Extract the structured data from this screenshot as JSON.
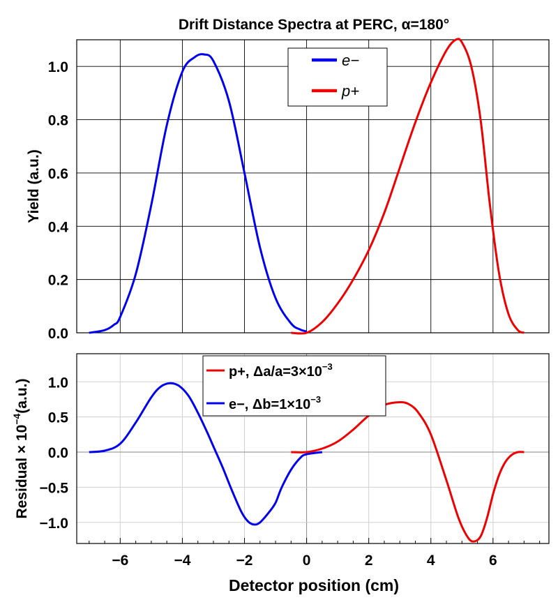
{
  "chart_data": [
    {
      "type": "line",
      "title": "Drift Distance Spectra at PERC, α=180°",
      "xlabel": "",
      "ylabel": "Yield (a.u.)",
      "xlim": [
        -7.4,
        7.8
      ],
      "ylim": [
        0,
        1.1
      ],
      "yticks": [
        "0.0",
        "0.2",
        "0.4",
        "0.6",
        "0.8",
        "1.0"
      ],
      "ytick_values": [
        0,
        0.2,
        0.4,
        0.6,
        0.8,
        1.0
      ],
      "xgrid": [
        -6,
        -4,
        -2,
        0,
        2,
        4,
        6
      ],
      "grid": true,
      "legend": {
        "placement": "top-center",
        "entries": [
          {
            "label": "e−",
            "color": "#0000ee"
          },
          {
            "label": "p+",
            "color": "#ee0000"
          }
        ]
      },
      "series": [
        {
          "name": "e−",
          "color": "#0000ee",
          "x": [
            -7,
            -6.5,
            -6.2,
            -6,
            -5.5,
            -5,
            -4.5,
            -4,
            -3.6,
            -3.3,
            -3,
            -2.5,
            -2,
            -1.5,
            -1,
            -0.5,
            -0.2,
            0
          ],
          "y": [
            0.0,
            0.01,
            0.03,
            0.06,
            0.22,
            0.48,
            0.78,
            0.98,
            1.035,
            1.045,
            1.02,
            0.87,
            0.6,
            0.32,
            0.13,
            0.035,
            0.012,
            0.005
          ]
        },
        {
          "name": "p+",
          "color": "#ee0000",
          "x": [
            -0.5,
            0,
            0.5,
            1,
            1.5,
            2,
            2.5,
            3,
            3.5,
            4,
            4.5,
            4.8,
            5,
            5.3,
            5.6,
            5.9,
            6.2,
            6.5,
            6.8,
            7
          ],
          "y": [
            0.0,
            0.0,
            0.04,
            0.11,
            0.2,
            0.31,
            0.45,
            0.62,
            0.79,
            0.94,
            1.06,
            1.1,
            1.09,
            1.0,
            0.8,
            0.48,
            0.22,
            0.07,
            0.01,
            0.0
          ]
        }
      ]
    },
    {
      "type": "line",
      "xlabel": "Detector position (cm)",
      "ylabel": "Residual × 10^−4(a.u.)",
      "ylabel_main": "Residual × 10",
      "ylabel_exp": "−4",
      "ylabel_unit": "(a.u.)",
      "xlim": [
        -7.4,
        7.8
      ],
      "ylim": [
        -1.3,
        1.4
      ],
      "xticks": [
        "−6",
        "−4",
        "−2",
        "0",
        "2",
        "4",
        "6"
      ],
      "xtick_values": [
        -6,
        -4,
        -2,
        0,
        2,
        4,
        6
      ],
      "yticks": [
        "−1.0",
        "−0.5",
        "0.0",
        "0.5",
        "1.0"
      ],
      "ytick_values": [
        -1.0,
        -0.5,
        0.0,
        0.5,
        1.0
      ],
      "grid": true,
      "legend": {
        "placement": "top-center",
        "entries": [
          {
            "main": "p+, Δa/a=3×10",
            "exp": "−3",
            "color": "#ee0000"
          },
          {
            "main": "e−, Δb=1×10",
            "exp": "−3",
            "color": "#0000ee"
          }
        ]
      },
      "series": [
        {
          "name": "e−, Δb=1×10^−3",
          "color": "#0000ee",
          "x": [
            -7,
            -6.5,
            -6,
            -5.5,
            -5,
            -4.7,
            -4.4,
            -4.1,
            -3.8,
            -3.5,
            -3.2,
            -3,
            -2.7,
            -2.4,
            -2.1,
            -1.9,
            -1.7,
            -1.5,
            -1.2,
            -1,
            -0.8,
            -0.5,
            -0.2,
            0,
            0.5
          ],
          "y": [
            0.0,
            0.02,
            0.12,
            0.42,
            0.78,
            0.93,
            0.98,
            0.94,
            0.8,
            0.56,
            0.28,
            0.08,
            -0.22,
            -0.55,
            -0.85,
            -0.98,
            -1.03,
            -1.0,
            -0.85,
            -0.72,
            -0.5,
            -0.25,
            -0.08,
            -0.03,
            0.0
          ]
        },
        {
          "name": "p+, Δa/a=3×10^−3",
          "color": "#ee0000",
          "x": [
            -0.5,
            0,
            0.5,
            1,
            1.5,
            2,
            2.5,
            3,
            3.3,
            3.6,
            4,
            4.5,
            4.9,
            5.2,
            5.4,
            5.6,
            5.8,
            6,
            6.2,
            6.4,
            6.6,
            6.8,
            7
          ],
          "y": [
            0.0,
            0.0,
            0.05,
            0.15,
            0.32,
            0.52,
            0.67,
            0.71,
            0.68,
            0.56,
            0.25,
            -0.4,
            -0.95,
            -1.22,
            -1.27,
            -1.2,
            -0.95,
            -0.6,
            -0.32,
            -0.14,
            -0.04,
            0.0,
            0.0
          ]
        }
      ]
    }
  ]
}
